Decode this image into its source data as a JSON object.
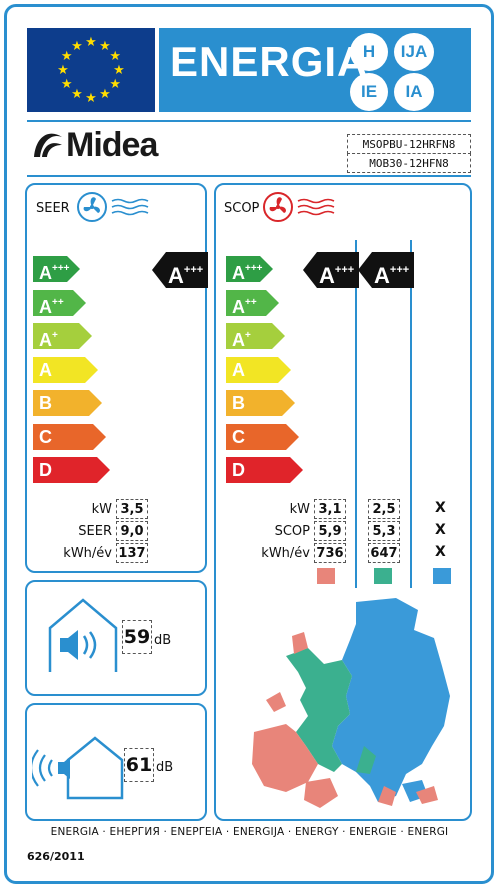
{
  "header": {
    "title": "ENERGIA",
    "languages": [
      "H",
      "IJA",
      "IE",
      "IA"
    ]
  },
  "brand": {
    "name": "Midea",
    "models": [
      "MSOPBU-12HRFN8",
      "MOB30-12HFN8"
    ]
  },
  "scale": [
    {
      "letter": "A",
      "plus": "+++",
      "color": "#2e9e45"
    },
    {
      "letter": "A",
      "plus": "++",
      "color": "#52b648"
    },
    {
      "letter": "A",
      "plus": "+",
      "color": "#a5cf3d"
    },
    {
      "letter": "A",
      "plus": "",
      "color": "#f2e524"
    },
    {
      "letter": "B",
      "plus": "",
      "color": "#f2b22c"
    },
    {
      "letter": "C",
      "plus": "",
      "color": "#e8662a"
    },
    {
      "letter": "D",
      "plus": "",
      "color": "#e0242a"
    }
  ],
  "cooling": {
    "label": "SEER",
    "icon": "fan-cool-icon",
    "rating": {
      "letter": "A",
      "plus": "+++"
    },
    "rows": [
      {
        "label": "kW",
        "value": "3,5"
      },
      {
        "label": "SEER",
        "value": "9,0"
      },
      {
        "label": "kWh/év",
        "value": "137"
      }
    ]
  },
  "heating": {
    "label": "SCOP",
    "icon": "fan-heat-icon",
    "zones": [
      {
        "rating": {
          "letter": "A",
          "plus": "+++"
        },
        "values": [
          "3,1",
          "5,9",
          "736"
        ],
        "color": "#e8857a"
      },
      {
        "rating": {
          "letter": "A",
          "plus": "+++"
        },
        "values": [
          "2,5",
          "5,3",
          "647"
        ],
        "color": "#3bb08f"
      },
      {
        "rating": null,
        "values": [
          "X",
          "X",
          "X"
        ],
        "color": "#3a9ad9"
      }
    ],
    "row_labels": [
      "kW",
      "SCOP",
      "kWh/év"
    ]
  },
  "noise": {
    "indoor": {
      "value": "59",
      "unit": "dB"
    },
    "outdoor": {
      "value": "61",
      "unit": "dB"
    }
  },
  "footer": {
    "languages": "ENERGIA · ЕНЕРГИЯ · ΕΝΕΡΓΕΙΑ · ENERGIJA · ENERGY · ENERGIE · ENERGI",
    "regulation": "626/2011"
  }
}
